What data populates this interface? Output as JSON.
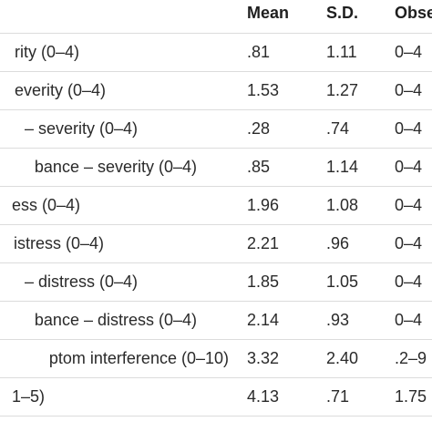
{
  "table": {
    "headers": {
      "mean": "Mean",
      "sd": "S.D.",
      "observed": "Obse"
    },
    "rows": [
      {
        "label": "rity (0–4)",
        "mean": ".81",
        "sd": "1.11",
        "observed": "0–4"
      },
      {
        "label": "everity (0–4)",
        "mean": "1.53",
        "sd": "1.27",
        "observed": "0–4"
      },
      {
        "label": "–  severity (0–4)",
        "mean": ".28",
        "sd": ".74",
        "observed": "0–4"
      },
      {
        "label": "bance –  severity (0–4)",
        "mean": ".85",
        "sd": "1.14",
        "observed": "0–4"
      },
      {
        "label": "ess (0–4)",
        "mean": "1.96",
        "sd": "1.08",
        "observed": "0–4"
      },
      {
        "label": "istress (0–4)",
        "mean": "2.21",
        "sd": ".96",
        "observed": "0–4"
      },
      {
        "label": "–  distress (0–4)",
        "mean": "1.85",
        "sd": "1.05",
        "observed": "0–4"
      },
      {
        "label": "bance –  distress (0–4)",
        "mean": "2.14",
        "sd": ".93",
        "observed": "0–4"
      },
      {
        "label": "ptom interference (0–10)",
        "mean": "3.32",
        "sd": "2.40",
        "observed": ".2–9"
      },
      {
        "label": "1–5)",
        "mean": "4.13",
        "sd": ".71",
        "observed": "1.75"
      }
    ]
  }
}
